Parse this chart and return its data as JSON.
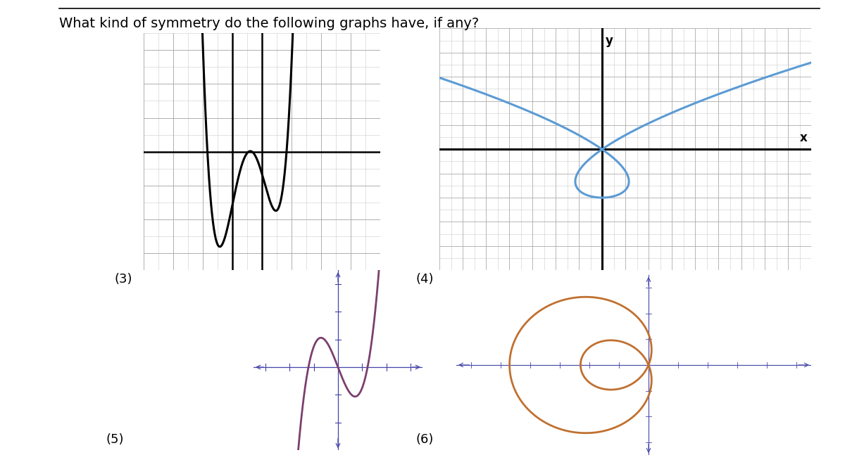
{
  "title": "What kind of symmetry do the following graphs have, if any?",
  "title_fontsize": 14,
  "labels": [
    "(3)",
    "(4)",
    "(5)",
    "(6)"
  ],
  "graph3_color": "#000000",
  "graph4_color": "#5b9bd5",
  "graph5_color": "#7b3f6e",
  "graph6_color": "#c07030",
  "background": "#ffffff",
  "grid_color": "#cccccc",
  "grid_color_dark": "#b0b0b0",
  "axis_color": "#000000",
  "axis_thin_color": "#4444aa"
}
